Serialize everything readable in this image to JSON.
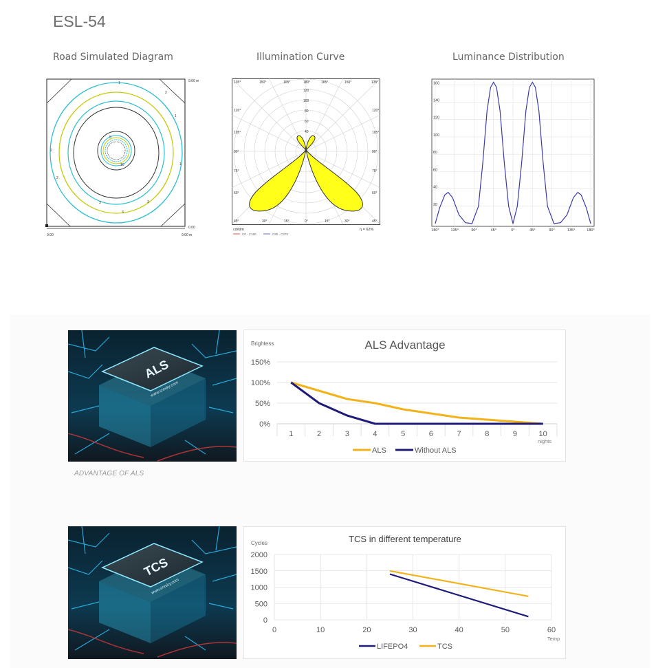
{
  "page": {
    "title": "ESL-54",
    "caption": "ADVANTAGE OF ALS"
  },
  "figures": {
    "road": {
      "title": "Road Simulated Diagram",
      "corner_top_right": "9.00 m",
      "corner_bottom_right": "0.00",
      "axis_left": "0.00",
      "axis_right": "9.00 m",
      "contour_labels": [
        "1",
        "2",
        "3",
        "5",
        "10"
      ]
    },
    "illumination": {
      "title": "Illumination Curve",
      "unit": "cd/klm",
      "efficiency": "η = 62%",
      "legend": [
        "C0 - C180",
        "C90 - C270"
      ],
      "top_angles": [
        "135°",
        "150°",
        "165°",
        "180°",
        "165°",
        "150°",
        "135°"
      ],
      "side_angles": [
        "120°",
        "105°",
        "90°",
        "75°",
        "60°",
        "45°"
      ],
      "bottom_angles": [
        "30°",
        "15°",
        "0°",
        "15°",
        "30°"
      ],
      "radial_labels": [
        "120",
        "100",
        "80",
        "60",
        "40"
      ]
    },
    "luminance": {
      "title": "Luminance Distribution"
    },
    "chips": {
      "als_label": "ALS",
      "tcs_label": "TCS",
      "brand": "www.sresky.com"
    }
  },
  "colors": {
    "als": "#f2b21a",
    "without_als": "#1f1b78",
    "lifepo4": "#1f1b78",
    "tcs": "#f2b21a",
    "polar_fill": "#ffff1a",
    "luminance_line": "#3a3aa8",
    "contour_cyan": "#2bbfcf",
    "contour_yellow": "#c9c90a"
  },
  "chart_data": [
    {
      "type": "line",
      "name": "luminance",
      "x": [
        "180°",
        "135°",
        "90°",
        "45°",
        "0°",
        "45°",
        "90°",
        "135°",
        "180°"
      ],
      "y_ticks": [
        20,
        40,
        60,
        80,
        100,
        120,
        140,
        160
      ],
      "ylim": [
        0,
        165
      ],
      "points": [
        [
          -180,
          0
        ],
        [
          -170,
          18
        ],
        [
          -158,
          33
        ],
        [
          -150,
          36
        ],
        [
          -140,
          30
        ],
        [
          -125,
          10
        ],
        [
          -110,
          1
        ],
        [
          -95,
          0
        ],
        [
          -80,
          20
        ],
        [
          -70,
          70
        ],
        [
          -60,
          130
        ],
        [
          -52,
          157
        ],
        [
          -45,
          163
        ],
        [
          -38,
          157
        ],
        [
          -30,
          130
        ],
        [
          -20,
          70
        ],
        [
          -10,
          20
        ],
        [
          0,
          0
        ],
        [
          10,
          20
        ],
        [
          20,
          70
        ],
        [
          30,
          130
        ],
        [
          38,
          157
        ],
        [
          45,
          163
        ],
        [
          52,
          157
        ],
        [
          60,
          130
        ],
        [
          70,
          70
        ],
        [
          80,
          20
        ],
        [
          95,
          0
        ],
        [
          110,
          1
        ],
        [
          125,
          10
        ],
        [
          140,
          30
        ],
        [
          150,
          36
        ],
        [
          158,
          33
        ],
        [
          170,
          18
        ],
        [
          180,
          0
        ]
      ]
    },
    {
      "type": "line",
      "title": "ALS Advantage",
      "ylabel": "Brightess",
      "xlabel": "nights",
      "x": [
        1,
        2,
        3,
        4,
        5,
        6,
        7,
        8,
        9,
        10
      ],
      "y_ticks": [
        "150%",
        "100%",
        "50%",
        "0%"
      ],
      "ylim": [
        0,
        150
      ],
      "series": [
        {
          "name": "ALS",
          "values": [
            100,
            80,
            60,
            50,
            35,
            25,
            15,
            10,
            5,
            0
          ]
        },
        {
          "name": "Without ALS",
          "values": [
            100,
            50,
            20,
            0,
            0,
            0,
            0,
            0,
            0,
            0
          ]
        }
      ]
    },
    {
      "type": "line",
      "title": "TCS in different temperature",
      "ylabel": "Cycles",
      "xlabel": "Temp",
      "xlim": [
        0,
        60
      ],
      "x_ticks": [
        0,
        10,
        20,
        30,
        40,
        50,
        60
      ],
      "y_ticks": [
        0,
        500,
        1000,
        1500,
        2000
      ],
      "ylim": [
        0,
        2000
      ],
      "series": [
        {
          "name": "LIFEPO4",
          "points": [
            [
              25,
              1400
            ],
            [
              55,
              100
            ]
          ]
        },
        {
          "name": "TCS",
          "points": [
            [
              25,
              1500
            ],
            [
              55,
              720
            ]
          ]
        }
      ]
    }
  ]
}
